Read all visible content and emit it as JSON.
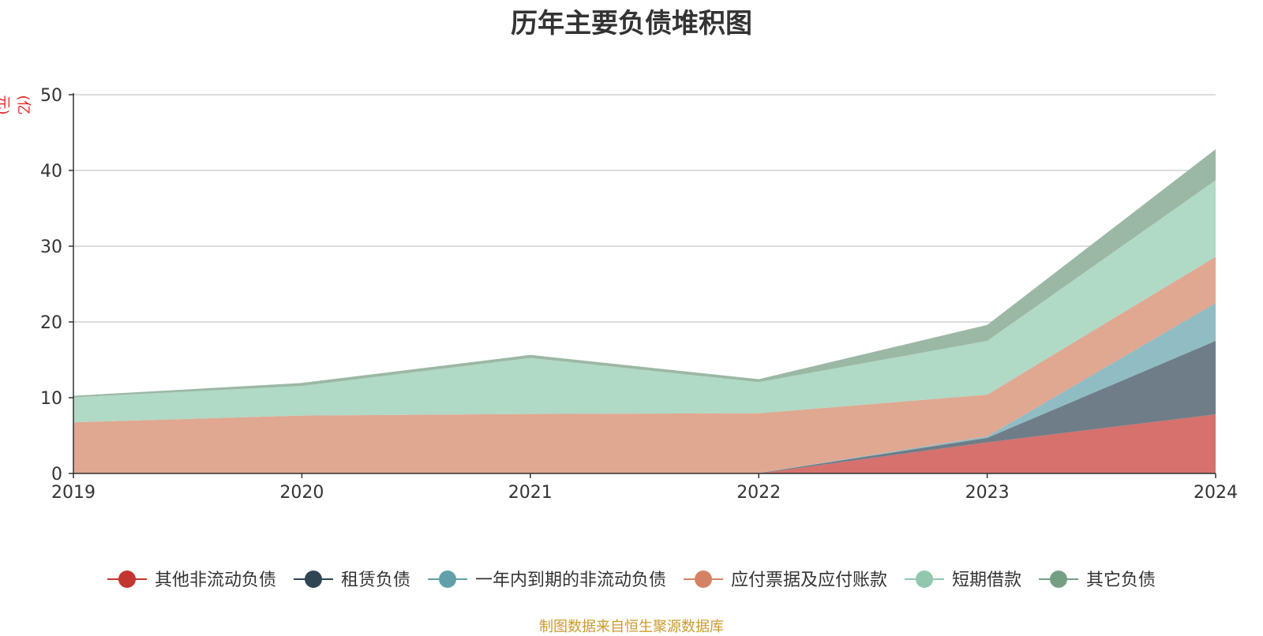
{
  "chart_data": {
    "type": "area",
    "stacked": true,
    "title": "历年主要负债堆积图",
    "y_unit": "(亿元)",
    "x": [
      "2019",
      "2020",
      "2021",
      "2022",
      "2023",
      "2024"
    ],
    "ylim": [
      0,
      50
    ],
    "yticks": [
      0,
      10,
      20,
      30,
      40,
      50
    ],
    "grid": true,
    "legend_position": "bottom",
    "series": [
      {
        "name": "其他非流动负债",
        "color": "#c23531",
        "fill": "#d6716d",
        "values": [
          0,
          0,
          0,
          0,
          4.1,
          7.8
        ]
      },
      {
        "name": "租赁负债",
        "color": "#2f4554",
        "fill": "#6e7d88",
        "values": [
          0.05,
          0.05,
          0.05,
          0.05,
          0.6,
          9.7
        ]
      },
      {
        "name": "一年内到期的非流动负债",
        "color": "#61a0a8",
        "fill": "#90bcc4",
        "values": [
          0,
          0,
          0,
          0,
          0.2,
          5.0
        ]
      },
      {
        "name": "应付票据及应付账款",
        "color": "#d48265",
        "fill": "#e0a791",
        "values": [
          6.7,
          7.6,
          7.8,
          7.9,
          5.5,
          6.1
        ]
      },
      {
        "name": "短期借款",
        "color": "#91c7ae",
        "fill": "#b0d9c6",
        "values": [
          3.3,
          3.9,
          7.4,
          4.1,
          7.1,
          10.1
        ]
      },
      {
        "name": "其它负债",
        "color": "#749f83",
        "fill": "#9bb8a5",
        "values": [
          0.2,
          0.4,
          0.4,
          0.4,
          2.1,
          4.1
        ]
      }
    ],
    "source": "制图数据来自恒生聚源数据库"
  }
}
